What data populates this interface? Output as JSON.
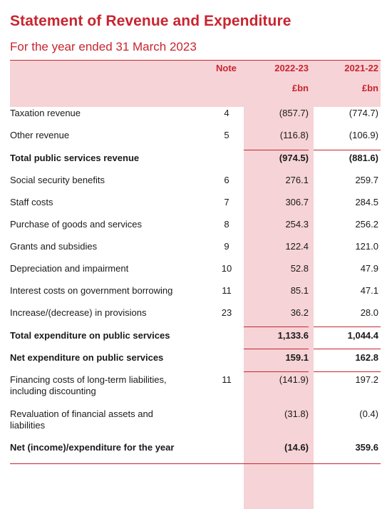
{
  "title": "Statement of Revenue and Expenditure",
  "subtitle": "For the year ended 31 March 2023",
  "header": {
    "note": "Note",
    "col1": "2022-23",
    "col2": "2021-22",
    "unit1": "£bn",
    "unit2": "£bn"
  },
  "rows": [
    {
      "label": "Taxation revenue",
      "note": "4",
      "v1": "(857.7)",
      "v2": "(774.7)"
    },
    {
      "label": "Other revenue",
      "note": "5",
      "v1": "(116.8)",
      "v2": "(106.9)"
    },
    {
      "label": "Total public services revenue",
      "note": "",
      "v1": "(974.5)",
      "v2": "(881.6)"
    },
    {
      "label": "Social security benefits",
      "note": "6",
      "v1": "276.1",
      "v2": "259.7"
    },
    {
      "label": "Staff costs",
      "note": "7",
      "v1": "306.7",
      "v2": "284.5"
    },
    {
      "label": "Purchase of goods and services",
      "note": "8",
      "v1": "254.3",
      "v2": "256.2"
    },
    {
      "label": "Grants and subsidies",
      "note": "9",
      "v1": "122.4",
      "v2": "121.0"
    },
    {
      "label": "Depreciation and impairment",
      "note": "10",
      "v1": "52.8",
      "v2": "47.9"
    },
    {
      "label": "Interest costs on government borrowing",
      "note": "11",
      "v1": "85.1",
      "v2": "47.1"
    },
    {
      "label": "Increase/(decrease) in provisions",
      "note": "23",
      "v1": "36.2",
      "v2": "28.0"
    },
    {
      "label": "Total expenditure on public services",
      "note": "",
      "v1": "1,133.6",
      "v2": "1,044.4"
    },
    {
      "label": "Net expenditure on public services",
      "note": "",
      "v1": "159.1",
      "v2": "162.8"
    },
    {
      "label": "Financing costs of long-term liabilities, including discounting",
      "note": "11",
      "v1": "(141.9)",
      "v2": "197.2"
    },
    {
      "label": "Revaluation of financial assets and liabilities",
      "note": "",
      "v1": "(31.8)",
      "v2": "(0.4)"
    },
    {
      "label": "Net (income)/expenditure for the year",
      "note": "",
      "v1": "(14.6)",
      "v2": "359.6"
    }
  ]
}
